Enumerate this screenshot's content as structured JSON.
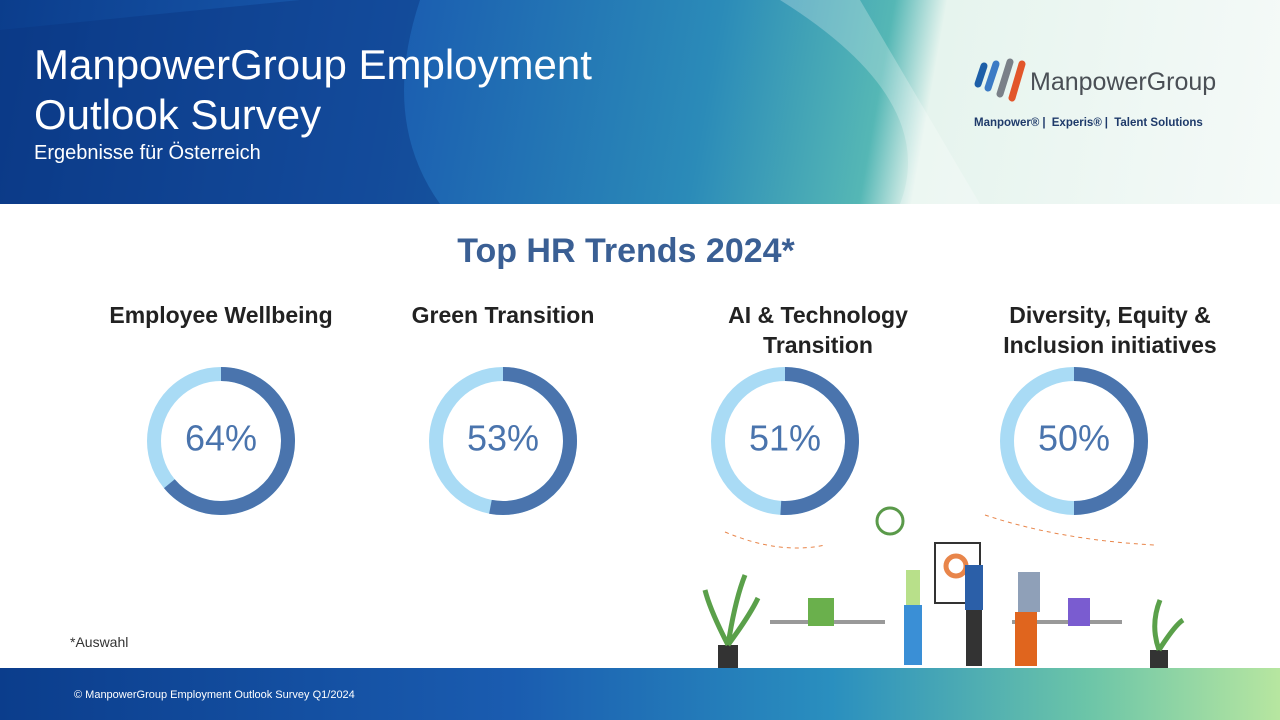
{
  "header": {
    "title": "ManpowerGroup Employment Outlook Survey",
    "subtitle": "Ergebnisse für Österreich"
  },
  "logo": {
    "name": "ManpowerGroup",
    "brands": [
      "Manpower®",
      "Experis®",
      "Talent Solutions"
    ]
  },
  "heading": "Top HR Trends 2024*",
  "chart_data": [
    {
      "type": "donut",
      "title": "Employee Wellbeing",
      "values": [
        64
      ],
      "value_labels": [
        "64%"
      ],
      "color": "#4a74ad",
      "track_color": "#a9dbf5"
    },
    {
      "type": "donut",
      "title": "Green Transition",
      "values": [
        53
      ],
      "value_labels": [
        "53%"
      ],
      "color": "#4a74ad",
      "track_color": "#a9dbf5"
    },
    {
      "type": "donut",
      "title": "AI & Technology Transition",
      "values": [
        51
      ],
      "value_labels": [
        "51%"
      ],
      "color": "#4a74ad",
      "track_color": "#a9dbf5"
    },
    {
      "type": "donut",
      "title": "Diversity, Equity & Inclusion initiatives",
      "values": [
        50
      ],
      "value_labels": [
        "50%"
      ],
      "color": "#4a74ad",
      "track_color": "#a9dbf5"
    }
  ],
  "footnote": "*Auswahl",
  "footer": "© ManpowerGroup Employment Outlook Survey Q1/2024"
}
